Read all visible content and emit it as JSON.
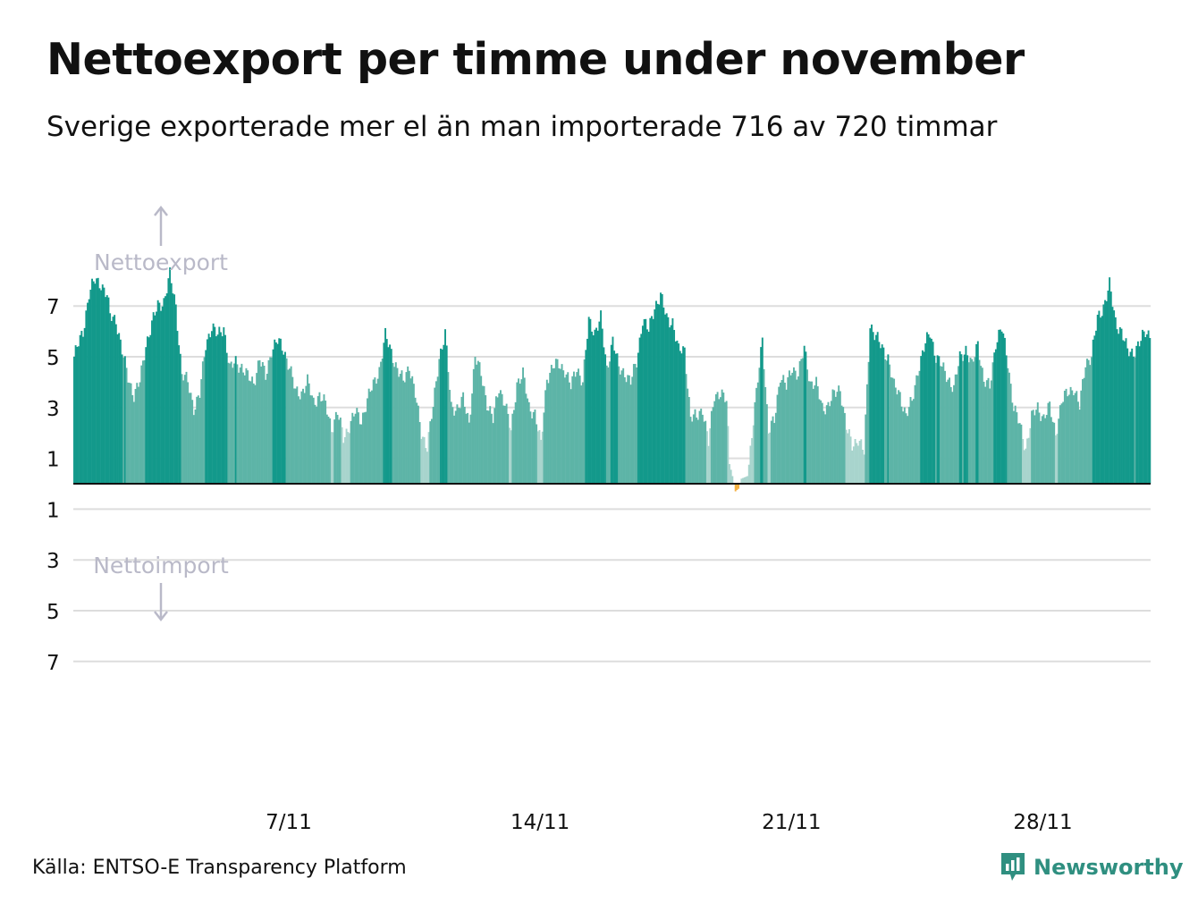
{
  "title": "Nettoexport per timme under november",
  "subtitle": "Sverige exporterade mer el än man importerade 716 av 720 timmar",
  "source": "Källa: ENTSO-E Transparency Platform",
  "logo": {
    "name": "Newsworthy",
    "icon": "bar-chart-speech-bubble-icon"
  },
  "colors": {
    "high": "#13998b",
    "mid": "#5db4a7",
    "low": "#a8d4cd",
    "import": "#f5b041",
    "grid": "#dddddd",
    "zero_line": "#111111",
    "direction_label": "#b9b9c8",
    "brand": "#2f8f80"
  },
  "chart_data": {
    "type": "bar",
    "x_unit": "hour",
    "x_range": [
      "2022-11-01 00:00",
      "2022-11-30 23:00"
    ],
    "hours": 720,
    "ylim": [
      -7,
      8.3
    ],
    "y_ticks": [
      7,
      5,
      3,
      1,
      -1,
      -3,
      -5,
      -7
    ],
    "y_tick_labels": [
      "7",
      "5",
      "3",
      "1",
      "1",
      "3",
      "5",
      "7"
    ],
    "x_ticks": [
      {
        "hour": 144,
        "label": "7/11"
      },
      {
        "hour": 312,
        "label": "14/11"
      },
      {
        "hour": 480,
        "label": "21/11"
      },
      {
        "hour": 648,
        "label": "28/11"
      }
    ],
    "direction_labels": {
      "up": "Nettoexport",
      "down": "Nettoimport"
    },
    "color_thresholds": {
      "low_below": 2.3,
      "high_from": 5.0
    },
    "series": [
      {
        "values_note": "hourly net export in GW; negative = net import",
        "keyframes": [
          [
            0,
            5.0
          ],
          [
            6,
            6.0
          ],
          [
            10,
            7.5
          ],
          [
            14,
            8.0
          ],
          [
            18,
            7.9
          ],
          [
            22,
            7.4
          ],
          [
            24,
            6.6
          ],
          [
            28,
            6.5
          ],
          [
            32,
            5.2
          ],
          [
            36,
            4.2
          ],
          [
            40,
            3.5
          ],
          [
            44,
            4.0
          ],
          [
            48,
            5.5
          ],
          [
            52,
            6.3
          ],
          [
            56,
            7.0
          ],
          [
            60,
            7.2
          ],
          [
            64,
            8.2
          ],
          [
            68,
            7.0
          ],
          [
            72,
            4.3
          ],
          [
            76,
            4.0
          ],
          [
            80,
            3.0
          ],
          [
            84,
            3.5
          ],
          [
            88,
            5.5
          ],
          [
            92,
            6.2
          ],
          [
            96,
            5.8
          ],
          [
            100,
            6.2
          ],
          [
            104,
            4.5
          ],
          [
            108,
            4.8
          ],
          [
            112,
            4.6
          ],
          [
            116,
            4.2
          ],
          [
            120,
            4.0
          ],
          [
            124,
            4.9
          ],
          [
            128,
            4.2
          ],
          [
            132,
            5.3
          ],
          [
            136,
            5.6
          ],
          [
            140,
            5.3
          ],
          [
            144,
            4.6
          ],
          [
            148,
            3.6
          ],
          [
            152,
            3.6
          ],
          [
            156,
            4.0
          ],
          [
            160,
            3.2
          ],
          [
            164,
            3.5
          ],
          [
            168,
            3.1
          ],
          [
            172,
            2.2
          ],
          [
            176,
            2.8
          ],
          [
            180,
            1.8
          ],
          [
            184,
            2.3
          ],
          [
            188,
            2.8
          ],
          [
            192,
            2.5
          ],
          [
            196,
            3.3
          ],
          [
            200,
            3.9
          ],
          [
            204,
            4.5
          ],
          [
            208,
            5.8
          ],
          [
            212,
            5.2
          ],
          [
            216,
            4.5
          ],
          [
            220,
            4.0
          ],
          [
            224,
            4.7
          ],
          [
            228,
            3.5
          ],
          [
            232,
            2.0
          ],
          [
            236,
            1.5
          ],
          [
            240,
            3.0
          ],
          [
            244,
            5.0
          ],
          [
            248,
            5.9
          ],
          [
            252,
            3.0
          ],
          [
            256,
            3.0
          ],
          [
            260,
            3.3
          ],
          [
            264,
            2.4
          ],
          [
            268,
            5.0
          ],
          [
            272,
            4.3
          ],
          [
            276,
            3.2
          ],
          [
            280,
            2.5
          ],
          [
            284,
            3.8
          ],
          [
            288,
            3.2
          ],
          [
            292,
            2.0
          ],
          [
            296,
            4.0
          ],
          [
            300,
            4.3
          ],
          [
            304,
            3.0
          ],
          [
            308,
            2.8
          ],
          [
            312,
            1.5
          ],
          [
            316,
            4.2
          ],
          [
            320,
            4.6
          ],
          [
            324,
            4.7
          ],
          [
            328,
            4.5
          ],
          [
            332,
            3.8
          ],
          [
            336,
            4.6
          ],
          [
            340,
            4.0
          ],
          [
            344,
            6.4
          ],
          [
            348,
            6.0
          ],
          [
            352,
            6.5
          ],
          [
            356,
            4.5
          ],
          [
            360,
            5.7
          ],
          [
            364,
            4.5
          ],
          [
            368,
            4.4
          ],
          [
            372,
            4.0
          ],
          [
            376,
            4.8
          ],
          [
            380,
            6.5
          ],
          [
            384,
            6.0
          ],
          [
            388,
            7.0
          ],
          [
            392,
            7.4
          ],
          [
            396,
            6.5
          ],
          [
            400,
            6.4
          ],
          [
            404,
            5.2
          ],
          [
            408,
            5.3
          ],
          [
            412,
            2.6
          ],
          [
            416,
            2.6
          ],
          [
            420,
            3.0
          ],
          [
            424,
            1.6
          ],
          [
            428,
            3.5
          ],
          [
            432,
            3.6
          ],
          [
            436,
            3.2
          ],
          [
            438,
            0.8
          ],
          [
            440,
            0.3
          ],
          [
            442,
            -0.3
          ],
          [
            444,
            -0.2
          ],
          [
            446,
            0.2
          ],
          [
            450,
            0.3
          ],
          [
            456,
            3.5
          ],
          [
            460,
            5.8
          ],
          [
            464,
            2.0
          ],
          [
            468,
            2.5
          ],
          [
            472,
            4.3
          ],
          [
            476,
            3.8
          ],
          [
            480,
            4.6
          ],
          [
            484,
            4.3
          ],
          [
            488,
            5.3
          ],
          [
            492,
            4.0
          ],
          [
            496,
            3.9
          ],
          [
            500,
            3.0
          ],
          [
            504,
            3.1
          ],
          [
            508,
            3.5
          ],
          [
            512,
            3.8
          ],
          [
            516,
            2.2
          ],
          [
            520,
            1.5
          ],
          [
            524,
            1.8
          ],
          [
            528,
            1.2
          ],
          [
            532,
            6.3
          ],
          [
            536,
            5.8
          ],
          [
            540,
            5.3
          ],
          [
            544,
            5.0
          ],
          [
            548,
            3.8
          ],
          [
            552,
            3.5
          ],
          [
            556,
            2.7
          ],
          [
            560,
            3.2
          ],
          [
            564,
            4.5
          ],
          [
            568,
            5.3
          ],
          [
            572,
            6.0
          ],
          [
            576,
            5.0
          ],
          [
            580,
            4.6
          ],
          [
            584,
            4.2
          ],
          [
            588,
            3.7
          ],
          [
            592,
            5.0
          ],
          [
            596,
            5.3
          ],
          [
            600,
            4.6
          ],
          [
            604,
            5.6
          ],
          [
            608,
            4.0
          ],
          [
            612,
            3.8
          ],
          [
            616,
            5.6
          ],
          [
            620,
            6.1
          ],
          [
            624,
            4.8
          ],
          [
            628,
            3.0
          ],
          [
            632,
            2.3
          ],
          [
            636,
            1.4
          ],
          [
            640,
            2.6
          ],
          [
            644,
            3.0
          ],
          [
            648,
            2.6
          ],
          [
            652,
            3.0
          ],
          [
            656,
            2.0
          ],
          [
            660,
            3.2
          ],
          [
            664,
            3.6
          ],
          [
            668,
            3.8
          ],
          [
            672,
            3.0
          ],
          [
            676,
            4.8
          ],
          [
            680,
            5.0
          ],
          [
            684,
            6.5
          ],
          [
            688,
            7.0
          ],
          [
            692,
            7.8
          ],
          [
            696,
            6.4
          ],
          [
            700,
            6.0
          ],
          [
            704,
            5.2
          ],
          [
            708,
            5.2
          ],
          [
            712,
            5.5
          ],
          [
            716,
            6.0
          ],
          [
            719,
            5.9
          ]
        ]
      }
    ]
  }
}
